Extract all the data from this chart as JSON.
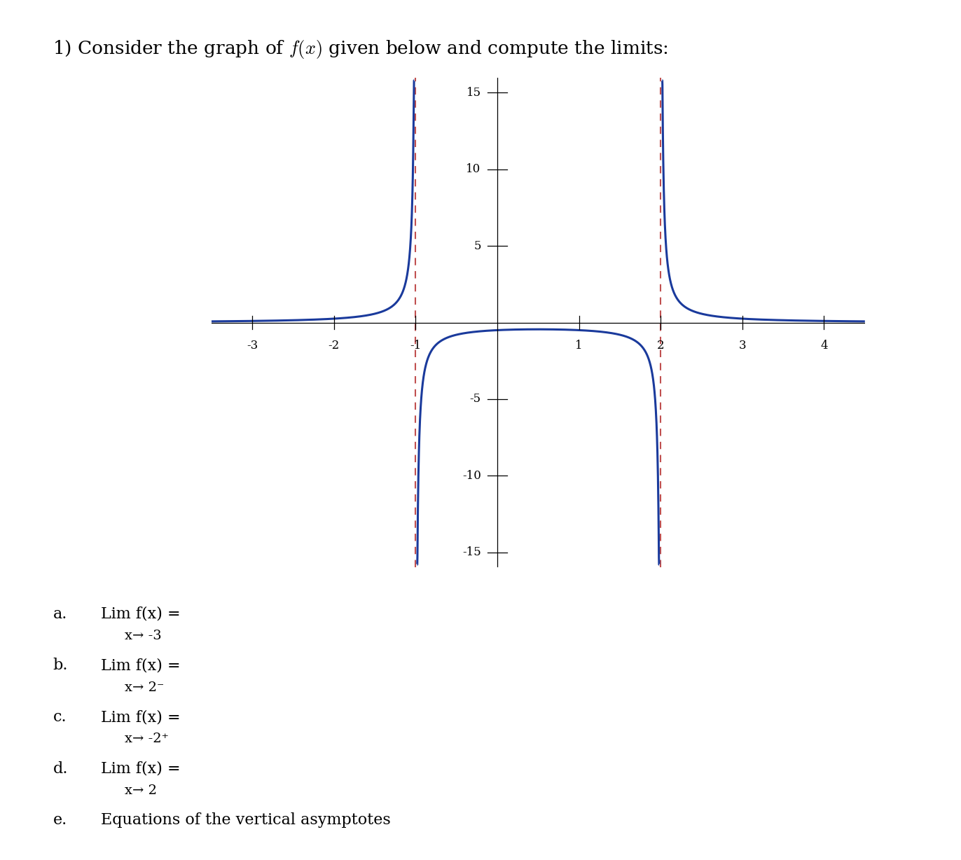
{
  "title": "1) Consider the graph of $f(x)$ given below and compute the limits:",
  "asymptotes": [
    -1,
    2
  ],
  "xlim": [
    -3.5,
    4.5
  ],
  "ylim": [
    -16,
    16
  ],
  "xticks": [
    -3,
    -2,
    -1,
    1,
    2,
    3,
    4
  ],
  "yticks": [
    -15,
    -10,
    -5,
    5,
    10,
    15
  ],
  "curve_color": "#1a3a9c",
  "asymptote_color": "#c05050",
  "curve_linewidth": 2.2,
  "asymptote_linewidth": 1.5,
  "q_labels": [
    "a.",
    "b.",
    "c.",
    "d.",
    "e."
  ],
  "q_texts": [
    "Lim f(x) =",
    "Lim f(x) =",
    "Lim f(x) =",
    "Lim f(x) =",
    "Equations of the vertical asymptotes"
  ],
  "q_subs": [
    "x→ -3",
    "x→ 2⁻",
    "x→ -2⁺",
    "x→ 2",
    ""
  ],
  "background_color": "#ffffff",
  "fontsize_title": 19,
  "fontsize_q": 16,
  "fontsize_sub": 14,
  "fontsize_tick": 12
}
